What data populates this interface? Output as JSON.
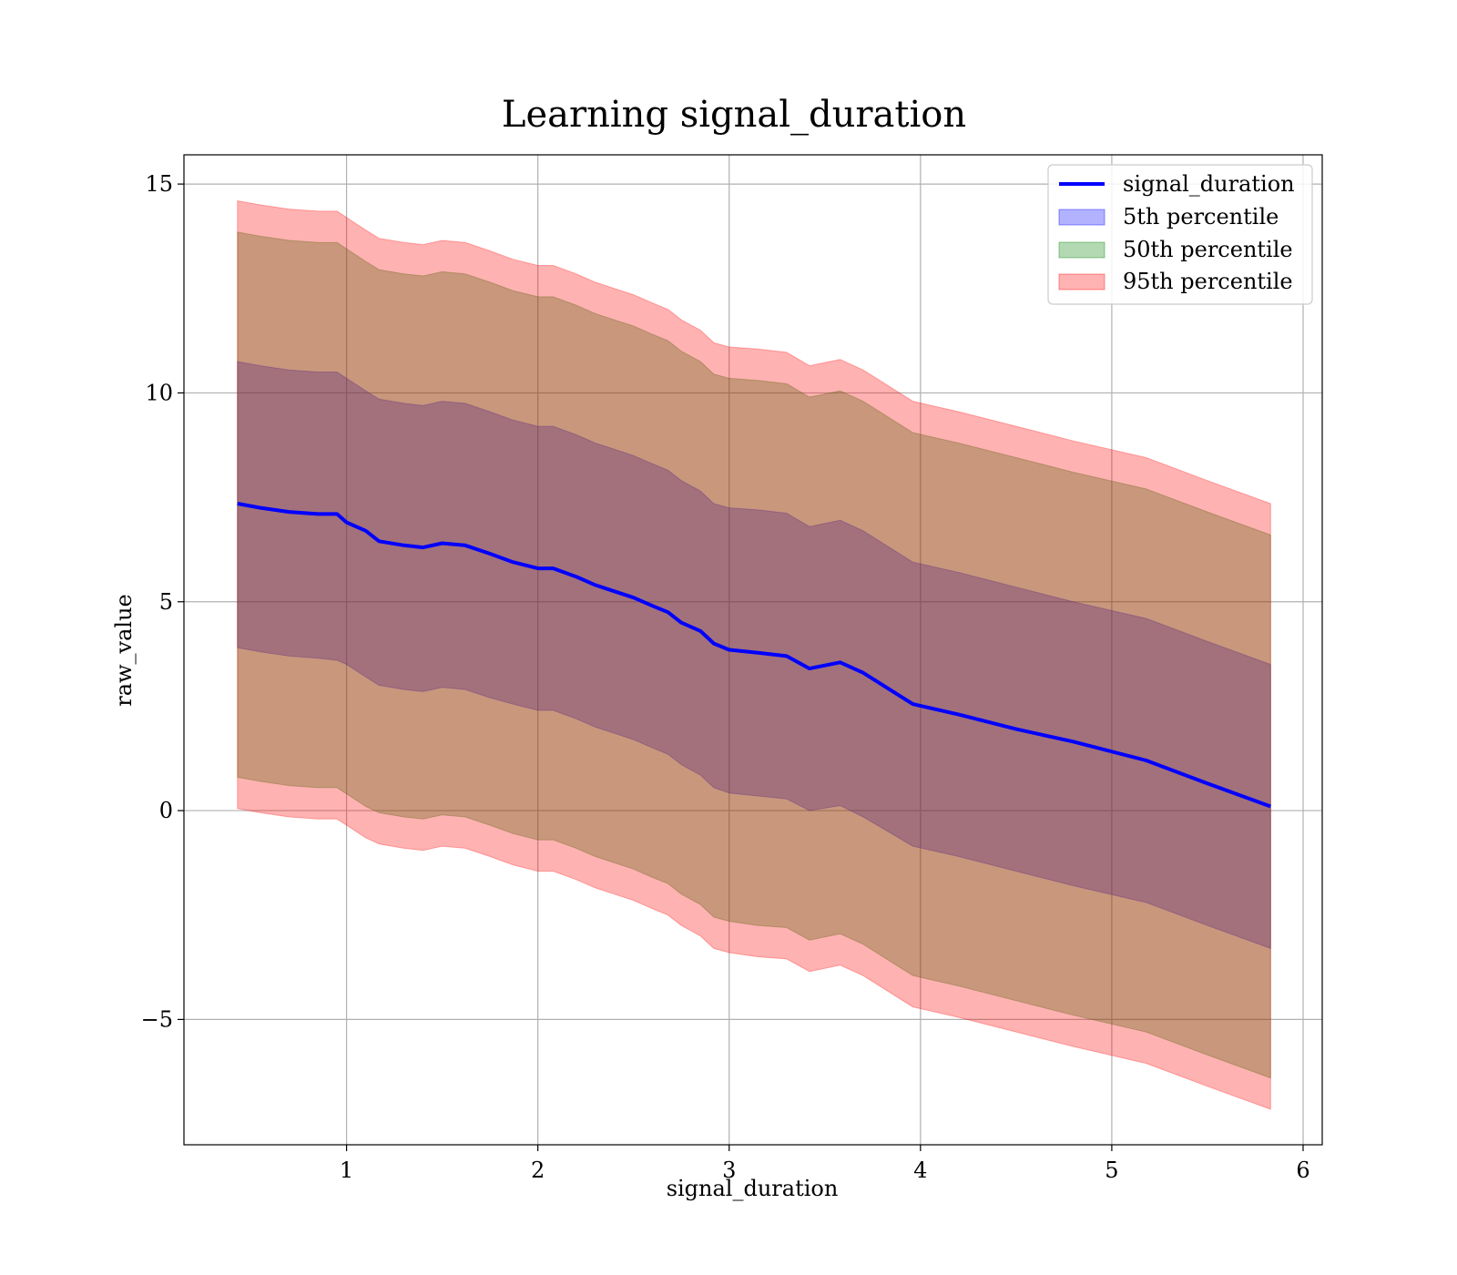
{
  "chart_data": {
    "type": "area",
    "title": "Learning signal_duration",
    "xlabel": "signal_duration",
    "ylabel": "raw_value",
    "xlim": [
      0.15,
      6.1
    ],
    "ylim": [
      -8.0,
      15.7
    ],
    "xticks": [
      1,
      2,
      3,
      4,
      5,
      6
    ],
    "yticks": [
      15,
      10,
      5,
      0,
      -5
    ],
    "xtick_labels": [
      "1",
      "2",
      "3",
      "4",
      "5",
      "6"
    ],
    "ytick_labels": [
      "15",
      "10",
      "5",
      "0",
      "−5"
    ],
    "grid": true,
    "legend_position": "top-right",
    "x": [
      0.43,
      0.55,
      0.7,
      0.85,
      0.95,
      1.0,
      1.1,
      1.17,
      1.3,
      1.4,
      1.5,
      1.62,
      1.75,
      1.87,
      2.0,
      2.08,
      2.2,
      2.3,
      2.4,
      2.5,
      2.6,
      2.68,
      2.75,
      2.85,
      2.92,
      3.0,
      3.15,
      3.3,
      3.42,
      3.58,
      3.7,
      3.96,
      4.2,
      4.5,
      4.8,
      5.18,
      5.5,
      5.83
    ],
    "series": [
      {
        "name": "signal_duration",
        "kind": "line",
        "color": "#0000ff",
        "values": [
          7.35,
          7.25,
          7.15,
          7.1,
          7.1,
          6.9,
          6.7,
          6.45,
          6.35,
          6.3,
          6.4,
          6.35,
          6.15,
          5.95,
          5.8,
          5.8,
          5.6,
          5.4,
          5.25,
          5.1,
          4.9,
          4.75,
          4.5,
          4.3,
          4.0,
          3.85,
          3.78,
          3.7,
          3.4,
          3.55,
          3.3,
          2.55,
          2.3,
          1.95,
          1.65,
          1.2,
          0.65,
          0.1
        ]
      },
      {
        "name": "5th percentile",
        "kind": "band",
        "color": "#0000ff",
        "opacity": 0.3,
        "lower": [
          3.9,
          3.8,
          3.7,
          3.65,
          3.6,
          3.5,
          3.2,
          3.0,
          2.9,
          2.85,
          2.95,
          2.9,
          2.7,
          2.55,
          2.4,
          2.4,
          2.2,
          2.0,
          1.85,
          1.7,
          1.5,
          1.35,
          1.1,
          0.85,
          0.55,
          0.42,
          0.35,
          0.28,
          0.0,
          0.12,
          -0.15,
          -0.85,
          -1.1,
          -1.45,
          -1.8,
          -2.2,
          -2.75,
          -3.3
        ],
        "upper": [
          10.75,
          10.65,
          10.55,
          10.5,
          10.5,
          10.35,
          10.05,
          9.85,
          9.75,
          9.7,
          9.8,
          9.75,
          9.55,
          9.35,
          9.2,
          9.2,
          9.0,
          8.8,
          8.65,
          8.5,
          8.3,
          8.15,
          7.9,
          7.65,
          7.35,
          7.25,
          7.2,
          7.12,
          6.8,
          6.95,
          6.7,
          5.95,
          5.7,
          5.35,
          5.0,
          4.6,
          4.05,
          3.5
        ]
      },
      {
        "name": "50th percentile",
        "kind": "band",
        "color": "#008000",
        "opacity": 0.3,
        "lower": [
          0.8,
          0.7,
          0.6,
          0.55,
          0.55,
          0.4,
          0.1,
          -0.05,
          -0.15,
          -0.2,
          -0.1,
          -0.15,
          -0.35,
          -0.55,
          -0.7,
          -0.7,
          -0.9,
          -1.1,
          -1.25,
          -1.4,
          -1.6,
          -1.75,
          -2.0,
          -2.25,
          -2.55,
          -2.65,
          -2.75,
          -2.8,
          -3.1,
          -2.95,
          -3.2,
          -3.95,
          -4.2,
          -4.55,
          -4.9,
          -5.3,
          -5.85,
          -6.4
        ],
        "upper": [
          13.85,
          13.75,
          13.65,
          13.6,
          13.6,
          13.45,
          13.15,
          12.95,
          12.85,
          12.8,
          12.9,
          12.85,
          12.65,
          12.45,
          12.3,
          12.3,
          12.1,
          11.9,
          11.75,
          11.6,
          11.4,
          11.25,
          11.0,
          10.75,
          10.45,
          10.35,
          10.3,
          10.22,
          9.9,
          10.05,
          9.8,
          9.05,
          8.8,
          8.45,
          8.1,
          7.7,
          7.15,
          6.6
        ]
      },
      {
        "name": "95th percentile",
        "kind": "band",
        "color": "#ff0000",
        "opacity": 0.3,
        "lower": [
          0.05,
          -0.05,
          -0.15,
          -0.2,
          -0.2,
          -0.35,
          -0.65,
          -0.8,
          -0.9,
          -0.95,
          -0.85,
          -0.9,
          -1.1,
          -1.3,
          -1.45,
          -1.45,
          -1.65,
          -1.85,
          -2.0,
          -2.15,
          -2.35,
          -2.5,
          -2.75,
          -3.0,
          -3.3,
          -3.4,
          -3.5,
          -3.55,
          -3.85,
          -3.7,
          -3.95,
          -4.7,
          -4.95,
          -5.3,
          -5.65,
          -6.05,
          -6.6,
          -7.15
        ],
        "upper": [
          14.6,
          14.5,
          14.4,
          14.35,
          14.35,
          14.2,
          13.9,
          13.7,
          13.6,
          13.55,
          13.65,
          13.6,
          13.4,
          13.2,
          13.05,
          13.05,
          12.85,
          12.65,
          12.5,
          12.35,
          12.15,
          12.0,
          11.75,
          11.5,
          11.2,
          11.1,
          11.05,
          10.97,
          10.65,
          10.8,
          10.55,
          9.8,
          9.55,
          9.2,
          8.85,
          8.45,
          7.9,
          7.35
        ]
      }
    ]
  }
}
